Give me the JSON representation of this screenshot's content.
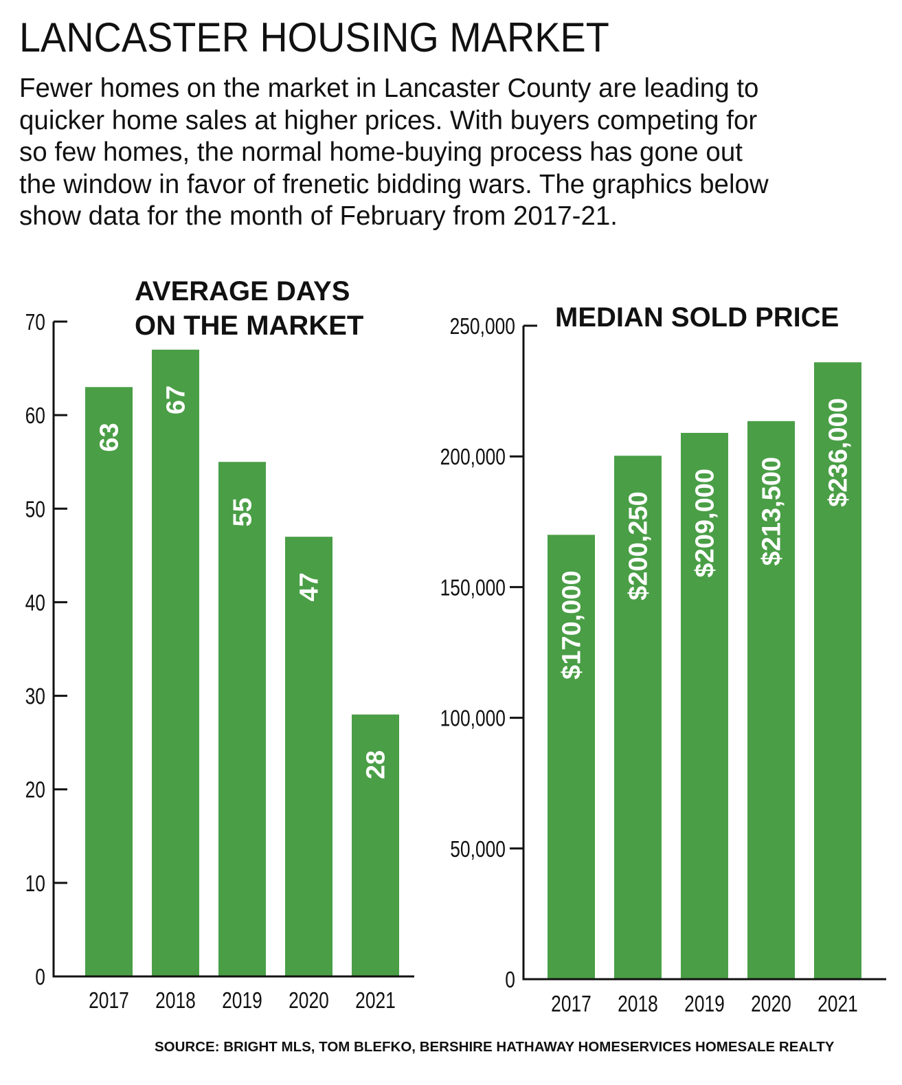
{
  "title": "LANCASTER HOUSING MARKET",
  "subtitle": "Fewer homes on the market in Lancaster County are leading to\nquicker home sales at higher prices. With buyers competing for\nso few homes, the normal home-buying process has gone out\nthe window in favor of frenetic bidding wars. The graphics below\nshow data for the month of February from 2017-21.",
  "source": "SOURCE: BRIGHT MLS, TOM BLEFKO, BERSHIRE HATHAWAY HOMESERVICES HOMESALE REALTY",
  "colors": {
    "bar": "#4a9e46",
    "axis": "#111111",
    "label": "#ffffff"
  },
  "chart_data": [
    {
      "type": "bar",
      "title_lines": [
        "AVERAGE DAYS",
        "ON THE MARKET"
      ],
      "categories": [
        "2017",
        "2018",
        "2019",
        "2020",
        "2021"
      ],
      "values": [
        63,
        67,
        55,
        47,
        28
      ],
      "data_labels": [
        "63",
        "67",
        "55",
        "47",
        "28"
      ],
      "ylim": [
        0,
        70
      ],
      "yticks": [
        0,
        10,
        20,
        30,
        40,
        50,
        60,
        70
      ],
      "ytick_labels": [
        "0",
        "10",
        "20",
        "30",
        "40",
        "50",
        "60",
        "70"
      ],
      "grid": false
    },
    {
      "type": "bar",
      "title_lines": [
        "MEDIAN SOLD PRICE"
      ],
      "categories": [
        "2017",
        "2018",
        "2019",
        "2020",
        "2021"
      ],
      "values": [
        170000,
        200250,
        209000,
        213500,
        236000
      ],
      "data_labels": [
        "$170,000",
        "$200,250",
        "$209,000",
        "$213,500",
        "$236,000"
      ],
      "ylim": [
        0,
        250000
      ],
      "yticks": [
        0,
        50000,
        100000,
        150000,
        200000,
        250000
      ],
      "ytick_labels": [
        "0",
        "50,000",
        "100,000",
        "150,000",
        "200,000",
        "250,000"
      ],
      "grid": false
    }
  ]
}
